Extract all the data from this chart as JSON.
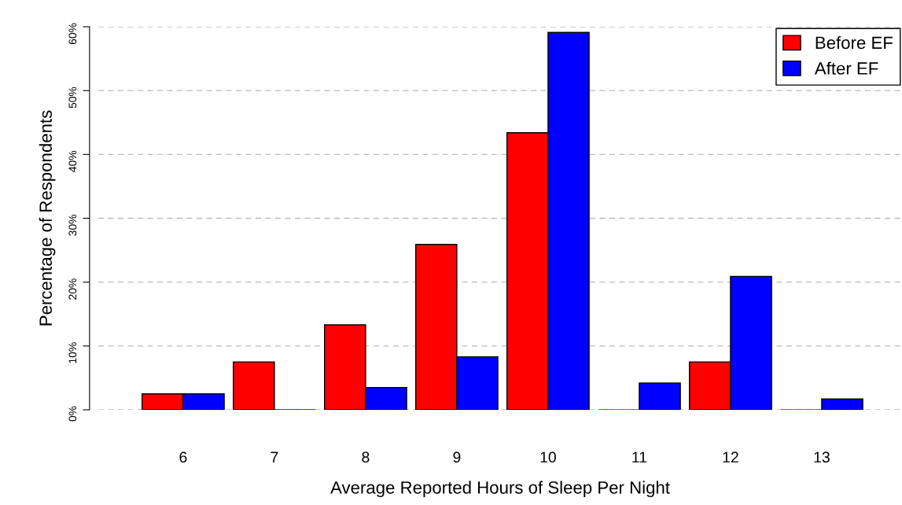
{
  "chart_data": {
    "type": "bar",
    "xlabel": "Average Reported Hours of Sleep Per Night",
    "ylabel": "Percentage of Respondents",
    "categories": [
      "6",
      "7",
      "8",
      "9",
      "10",
      "11",
      "12",
      "13"
    ],
    "series": [
      {
        "name": "Before EF",
        "color": "#ff0000",
        "values": [
          2.5,
          7.5,
          13.3,
          25.9,
          43.4,
          0,
          7.5,
          0
        ]
      },
      {
        "name": "After EF",
        "color": "#0000ff",
        "values": [
          2.5,
          0,
          3.5,
          8.3,
          59.1,
          4.2,
          20.9,
          1.7
        ]
      }
    ],
    "ylim": [
      0,
      60
    ],
    "yticks": [
      {
        "value": 0,
        "label": "0%"
      },
      {
        "value": 10,
        "label": "10%"
      },
      {
        "value": 20,
        "label": "20%"
      },
      {
        "value": 30,
        "label": "30%"
      },
      {
        "value": 40,
        "label": "40%"
      },
      {
        "value": 50,
        "label": "50%"
      },
      {
        "value": 60,
        "label": "60%"
      }
    ],
    "grid": "y",
    "legend": "top right"
  }
}
